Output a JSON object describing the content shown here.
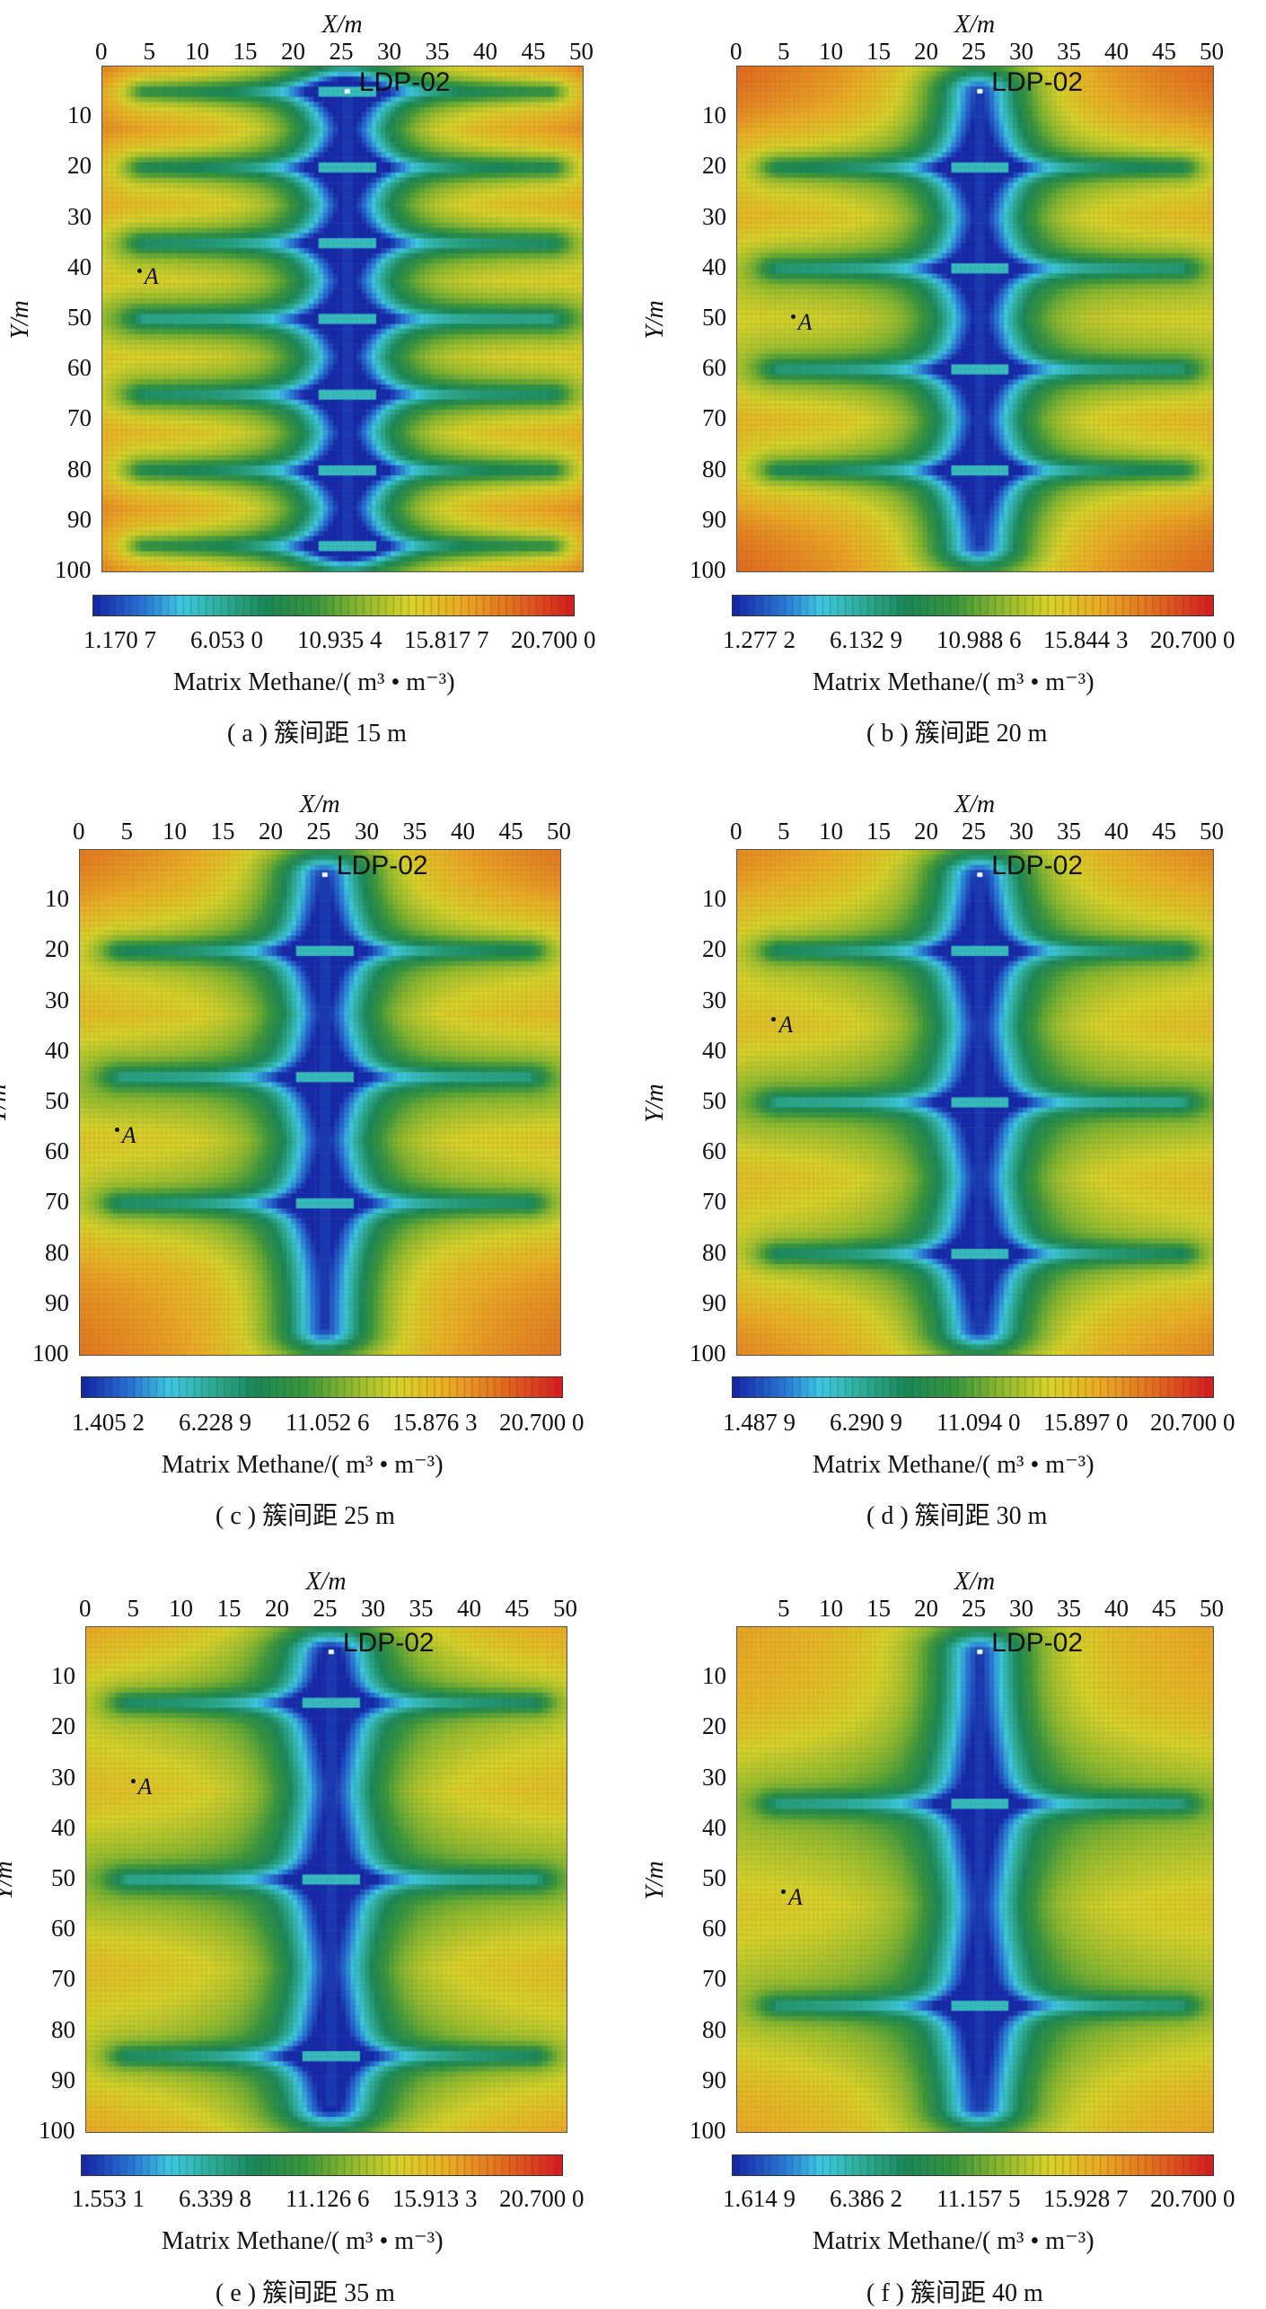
{
  "chart_data": [
    {
      "type": "heatmap",
      "panel_id": "a",
      "xlabel": "X/m",
      "ylabel": "Y/m",
      "xlim": [
        0,
        50
      ],
      "ylim": [
        0,
        100
      ],
      "x_ticks": [
        "0",
        "5",
        "10",
        "15",
        "20",
        "25",
        "30",
        "35",
        "40",
        "45",
        "50"
      ],
      "y_ticks": [
        "10",
        "20",
        "30",
        "40",
        "50",
        "60",
        "70",
        "80",
        "90",
        "100"
      ],
      "well_label": "LDP-02",
      "well_x": 25.5,
      "well_y_range": [
        5,
        95
      ],
      "fracture_spacing_m": 15,
      "fracture_y": [
        5,
        20,
        35,
        50,
        65,
        80,
        95
      ],
      "point_label": "A",
      "point": [
        4,
        42
      ],
      "colorbar_ticks": [
        "1.170 7",
        "6.053 0",
        "10.935 4",
        "15.817 7",
        "20.700 0"
      ],
      "colorbar_min": 1.1707,
      "colorbar_max": 20.7,
      "colorbar_label": "Matrix Methane/( m³ • m⁻³)",
      "caption": "( a ) 簇间距 15 m"
    },
    {
      "type": "heatmap",
      "panel_id": "b",
      "xlabel": "X/m",
      "ylabel": "Y/m",
      "xlim": [
        0,
        50
      ],
      "ylim": [
        0,
        100
      ],
      "x_ticks": [
        "0",
        "5",
        "10",
        "15",
        "20",
        "25",
        "30",
        "35",
        "40",
        "45",
        "50"
      ],
      "y_ticks": [
        "10",
        "20",
        "30",
        "40",
        "50",
        "60",
        "70",
        "80",
        "90",
        "100"
      ],
      "well_label": "LDP-02",
      "well_x": 25.5,
      "well_y_range": [
        5,
        95
      ],
      "fracture_spacing_m": 20,
      "fracture_y": [
        20,
        40,
        60,
        80
      ],
      "point_label": "A",
      "point": [
        6,
        51
      ],
      "colorbar_ticks": [
        "1.277 2",
        "6.132 9",
        "10.988 6",
        "15.844 3",
        "20.700 0"
      ],
      "colorbar_min": 1.2772,
      "colorbar_max": 20.7,
      "colorbar_label": "Matrix Methane/( m³ • m⁻³)",
      "caption": "( b ) 簇间距 20 m"
    },
    {
      "type": "heatmap",
      "panel_id": "c",
      "xlabel": "X/m",
      "ylabel": "Y/m",
      "xlim": [
        0,
        50
      ],
      "ylim": [
        0,
        100
      ],
      "x_ticks": [
        "0",
        "5",
        "10",
        "15",
        "20",
        "25",
        "30",
        "35",
        "40",
        "45",
        "50"
      ],
      "y_ticks": [
        "10",
        "20",
        "30",
        "40",
        "50",
        "60",
        "70",
        "80",
        "90",
        "100"
      ],
      "well_label": "LDP-02",
      "well_x": 25.5,
      "well_y_range": [
        5,
        95
      ],
      "fracture_spacing_m": 25,
      "fracture_y": [
        20,
        45,
        70
      ],
      "point_label": "A",
      "point": [
        4,
        57
      ],
      "colorbar_ticks": [
        "1.405 2",
        "6.228 9",
        "11.052 6",
        "15.876 3",
        "20.700 0"
      ],
      "colorbar_min": 1.4052,
      "colorbar_max": 20.7,
      "colorbar_label": "Matrix Methane/( m³ • m⁻³)",
      "caption": "( c ) 簇间距 25 m"
    },
    {
      "type": "heatmap",
      "panel_id": "d",
      "xlabel": "X/m",
      "ylabel": "Y/m",
      "xlim": [
        0,
        50
      ],
      "ylim": [
        0,
        100
      ],
      "x_ticks": [
        "0",
        "5",
        "10",
        "15",
        "20",
        "25",
        "30",
        "35",
        "40",
        "45",
        "50"
      ],
      "y_ticks": [
        "10",
        "20",
        "30",
        "40",
        "50",
        "60",
        "70",
        "80",
        "90",
        "100"
      ],
      "well_label": "LDP-02",
      "well_x": 25.5,
      "well_y_range": [
        5,
        95
      ],
      "fracture_spacing_m": 30,
      "fracture_y": [
        20,
        50,
        80
      ],
      "point_label": "A",
      "point": [
        4,
        35
      ],
      "colorbar_ticks": [
        "1.487 9",
        "6.290 9",
        "11.094 0",
        "15.897 0",
        "20.700 0"
      ],
      "colorbar_min": 1.4879,
      "colorbar_max": 20.7,
      "colorbar_label": "Matrix Methane/( m³ • m⁻³)",
      "caption": "( d ) 簇间距 30 m"
    },
    {
      "type": "heatmap",
      "panel_id": "e",
      "xlabel": "X/m",
      "ylabel": "Y/m",
      "xlim": [
        0,
        50
      ],
      "ylim": [
        0,
        100
      ],
      "x_ticks": [
        "0",
        "5",
        "10",
        "15",
        "20",
        "25",
        "30",
        "35",
        "40",
        "45",
        "50"
      ],
      "y_ticks": [
        "10",
        "20",
        "30",
        "40",
        "50",
        "60",
        "70",
        "80",
        "90",
        "100"
      ],
      "well_label": "LDP-02",
      "well_x": 25.5,
      "well_y_range": [
        5,
        95
      ],
      "fracture_spacing_m": 35,
      "fracture_y": [
        15,
        50,
        85
      ],
      "point_label": "A",
      "point": [
        5,
        32
      ],
      "colorbar_ticks": [
        "1.553 1",
        "6.339 8",
        "11.126 6",
        "15.913 3",
        "20.700 0"
      ],
      "colorbar_min": 1.5531,
      "colorbar_max": 20.7,
      "colorbar_label": "Matrix Methane/( m³ • m⁻³)",
      "caption": "( e ) 簇间距 35 m"
    },
    {
      "type": "heatmap",
      "panel_id": "f",
      "xlabel": "X/m",
      "ylabel": "Y/m",
      "xlim": [
        0,
        50
      ],
      "ylim": [
        0,
        100
      ],
      "x_ticks": [
        "5",
        "10",
        "15",
        "20",
        "25",
        "30",
        "35",
        "40",
        "45",
        "50"
      ],
      "y_ticks": [
        "10",
        "20",
        "30",
        "40",
        "50",
        "60",
        "70",
        "80",
        "90",
        "100"
      ],
      "well_label": "LDP-02",
      "well_x": 25.5,
      "well_y_range": [
        5,
        95
      ],
      "fracture_spacing_m": 40,
      "fracture_y": [
        35,
        75
      ],
      "point_label": "A",
      "point": [
        5,
        54
      ],
      "colorbar_ticks": [
        "1.614 9",
        "6.386 2",
        "11.157 5",
        "15.928 7",
        "20.700 0"
      ],
      "colorbar_min": 1.6149,
      "colorbar_max": 20.7,
      "colorbar_label": "Matrix Methane/( m³ • m⁻³)",
      "caption": "( f ) 簇间距 40 m"
    }
  ]
}
